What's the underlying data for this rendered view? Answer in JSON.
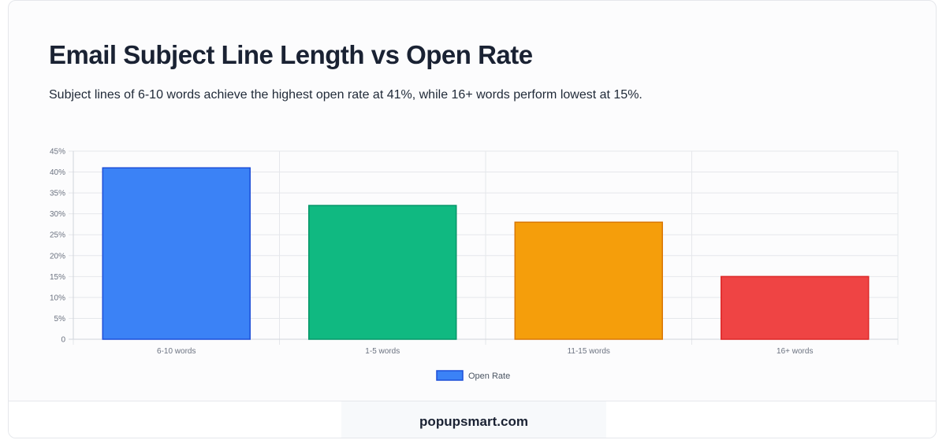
{
  "title": "Email Subject Line Length vs Open Rate",
  "subtitle": "Subject lines of 6-10 words achieve the highest open rate at 41%, while 16+ words perform lowest at 15%.",
  "footer": {
    "brand": "popupsmart.com"
  },
  "chart_data": {
    "type": "bar",
    "categories": [
      "6-10 words",
      "1-5 words",
      "11-15 words",
      "16+ words"
    ],
    "series": [
      {
        "name": "Open Rate",
        "values": [
          41,
          32,
          28,
          15
        ]
      }
    ],
    "bar_colors": [
      "#3b82f6",
      "#10b981",
      "#f59e0b",
      "#ef4444"
    ],
    "bar_border_colors": [
      "#1d4ed8",
      "#059669",
      "#d97706",
      "#dc2626"
    ],
    "ylim": [
      0,
      45
    ],
    "ytick_values": [
      0,
      5,
      10,
      15,
      20,
      25,
      30,
      35,
      40,
      45
    ],
    "ytick_labels": [
      "0",
      "5%",
      "10%",
      "15%",
      "20%",
      "25%",
      "30%",
      "35%",
      "40%",
      "45%"
    ],
    "xlabel": "",
    "ylabel": "",
    "grid": true,
    "legend_position": "bottom"
  }
}
